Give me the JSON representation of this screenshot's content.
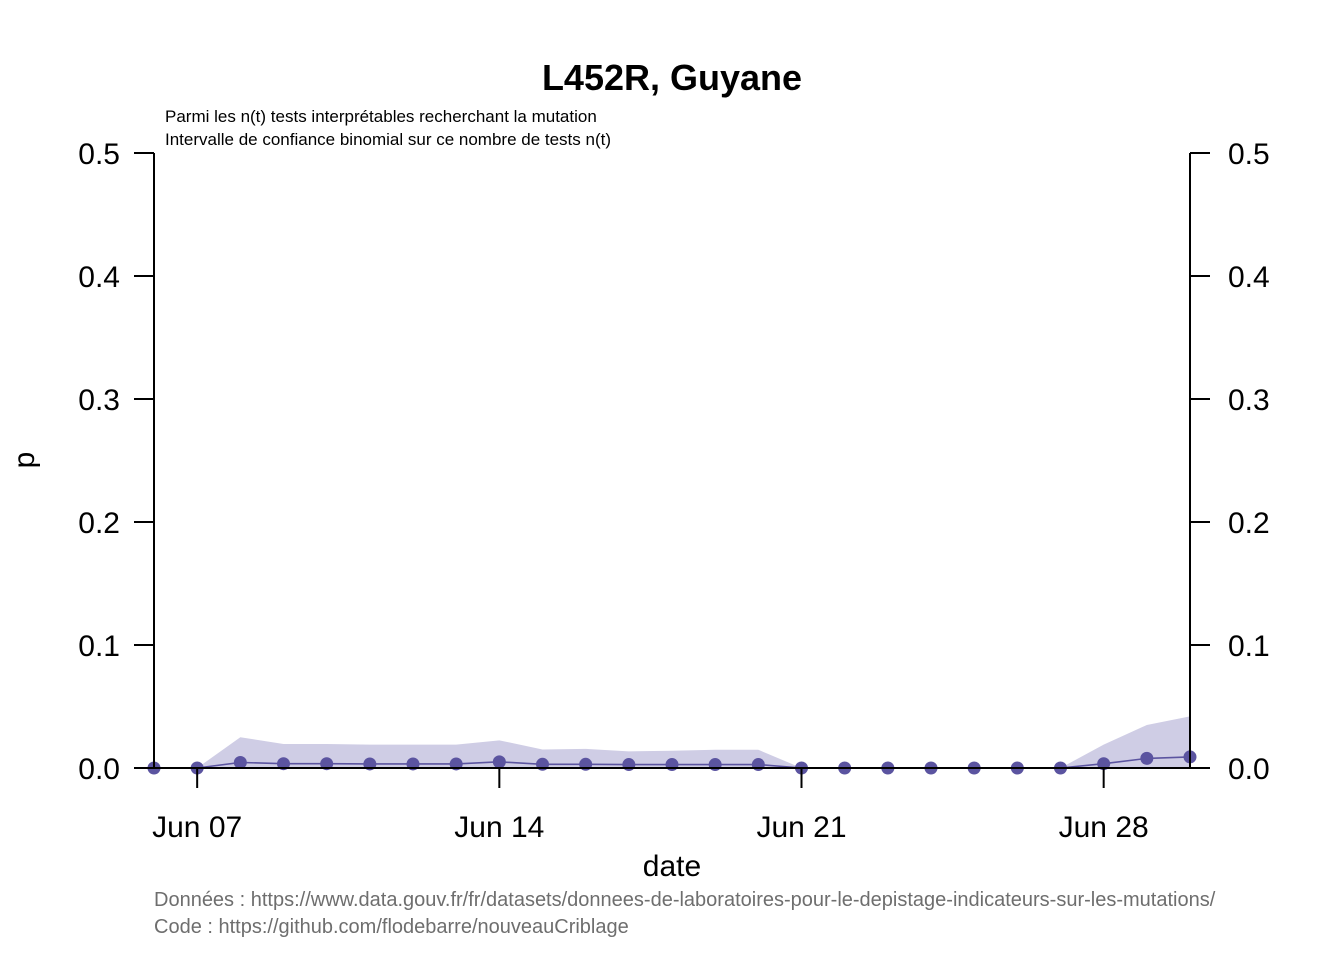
{
  "chart_data": {
    "type": "line",
    "title": "L452R, Guyane",
    "subtitle_lines": [
      "Parmi les n(t) tests interprétables recherchant la mutation",
      "Intervalle de confiance binomial sur ce nombre de tests n(t)"
    ],
    "xlabel": "date",
    "ylabel": "p",
    "x_tick_labels": [
      "Jun 07",
      "Jun 14",
      "Jun 21",
      "Jun 28"
    ],
    "x_tick_dates": [
      "2021-06-07",
      "2021-06-14",
      "2021-06-21",
      "2021-06-28"
    ],
    "xlim": [
      "2021-06-06",
      "2021-06-30"
    ],
    "ylim": [
      0,
      0.5
    ],
    "y_ticks": [
      0.0,
      0.1,
      0.2,
      0.3,
      0.4,
      0.5
    ],
    "y_tick_labels": [
      "0.0",
      "0.1",
      "0.2",
      "0.3",
      "0.4",
      "0.5"
    ],
    "right_axis": true,
    "grid": false,
    "series": [
      {
        "color": "#5b54a0",
        "band_color": "#cfcde5",
        "x": [
          "2021-06-06",
          "2021-06-07",
          "2021-06-08",
          "2021-06-09",
          "2021-06-10",
          "2021-06-11",
          "2021-06-12",
          "2021-06-13",
          "2021-06-14",
          "2021-06-15",
          "2021-06-16",
          "2021-06-17",
          "2021-06-18",
          "2021-06-19",
          "2021-06-20",
          "2021-06-21",
          "2021-06-22",
          "2021-06-23",
          "2021-06-24",
          "2021-06-25",
          "2021-06-26",
          "2021-06-27",
          "2021-06-28",
          "2021-06-29",
          "2021-06-30"
        ],
        "values": [
          0.0,
          0.0,
          0.0045,
          0.0035,
          0.0035,
          0.0033,
          0.0033,
          0.0033,
          0.005,
          0.003,
          0.003,
          0.0028,
          0.0028,
          0.0028,
          0.0028,
          0.0,
          0.0,
          0.0,
          0.0,
          0.0,
          0.0,
          0.0,
          0.0035,
          0.0078,
          0.009
        ],
        "ci_upper": [
          0.0,
          0.0,
          0.025,
          0.0195,
          0.0195,
          0.019,
          0.019,
          0.019,
          0.0225,
          0.015,
          0.0155,
          0.0135,
          0.014,
          0.0148,
          0.0148,
          0.0,
          0.0,
          0.0,
          0.0,
          0.0,
          0.0,
          0.0,
          0.019,
          0.035,
          0.042
        ],
        "ci_lower": [
          0.0,
          0.0,
          0.0,
          0.0,
          0.0,
          0.0,
          0.0,
          0.0,
          0.0,
          0.0,
          0.0,
          0.0,
          0.0,
          0.0,
          0.0,
          0.0,
          0.0,
          0.0,
          0.0,
          0.0,
          0.0,
          0.0,
          0.0,
          0.0,
          0.0
        ]
      }
    ]
  },
  "caption": {
    "data_source": "Données : https://www.data.gouv.fr/fr/datasets/donnees-de-laboratoires-pour-le-depistage-indicateurs-sur-les-mutations/",
    "code_source": "Code : https://github.com/flodebarre/nouveauCriblage"
  }
}
